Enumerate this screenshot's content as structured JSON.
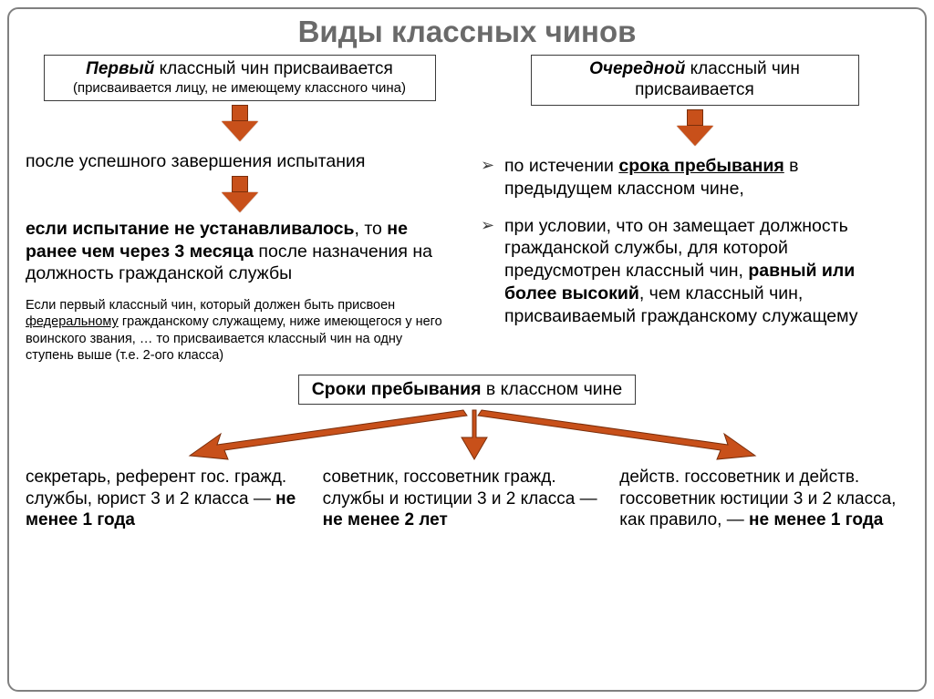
{
  "title": "Виды классных чинов",
  "colors": {
    "arrow_fill": "#c8501a",
    "arrow_stroke": "#7a2e0b",
    "border": "#808080",
    "text_gray": "#6a6a6a"
  },
  "left": {
    "box_bold": "Первый",
    "box_rest": " классный чин присваивается",
    "box_sub": "(присваивается лицу, не имеющему классного чина)",
    "step1": "после успешного завершения испытания",
    "step2_b1": "если испытание не устанавливалось",
    "step2_mid1": ", то ",
    "step2_b2": "не ранее чем через 3 месяца",
    "step2_mid2": " после назначения на должность гражданской службы",
    "note_pre": "Если первый классный чин, который должен быть присвоен ",
    "note_u": "федеральному",
    "note_post": " гражданскому служащему, ниже имеющегося у него воинского звания, … то присваивается классный чин на одну ступень выше (т.е. 2-ого класса)"
  },
  "right": {
    "box_bold": "Очередной",
    "box_rest": " классный чин присваивается",
    "b1_pre": "по истечении ",
    "b1_bu": "срока пребывания",
    "b1_post": " в предыдущем классном чине,",
    "b2_pre": "при условии, что он замещает должность гражданской службы, для которой предусмотрен классный чин, ",
    "b2_bold": "равный или более высокий",
    "b2_post": ", чем классный чин, присваиваемый гражданскому служащему"
  },
  "mid": {
    "bold": "Сроки пребывания",
    "rest": " в классном чине"
  },
  "bottom": {
    "c1_pre": "секретарь, референт гос. гражд. службы, юрист 3 и 2 класса — ",
    "c1_b": "не менее 1 года",
    "c2_pre": "советник, госсоветник гражд. службы и юстиции 3 и 2 класса — ",
    "c2_b": "не менее 2 лет",
    "c3_pre": "действ. госсоветник и действ. госсоветник юстиции 3 и 2 класса, как правило, — ",
    "c3_b": "не менее 1 года"
  },
  "arrow_tri": {
    "paths": [
      "M480,6 L210,44 L214,32 L180,56 L222,60 L218,50 L484,12 Z",
      "M490,6 L490,36 L478,36 L492,60 L506,36 L494,36 L494,6 Z",
      "M500,6 L770,44 L766,32 L800,56 L758,60 L762,50 L496,12 Z"
    ]
  }
}
